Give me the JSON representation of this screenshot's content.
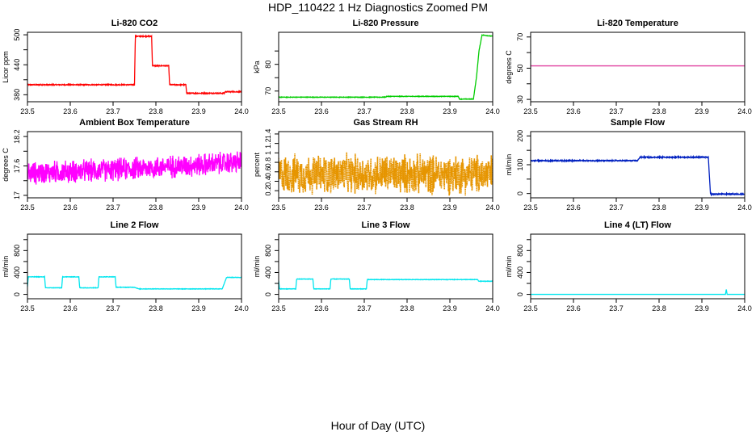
{
  "figure": {
    "title": "HDP_110422  1 Hz Diagnostics Zoomed PM",
    "xlabel": "Hour of Day (UTC)"
  },
  "chart_data": [
    {
      "type": "line",
      "title": "Li-820 CO2",
      "ylabel": "Licor ppm",
      "color": "#ff0000",
      "xlim": [
        23.5,
        24.0
      ],
      "ylim": [
        366,
        505
      ],
      "yticks": [
        380,
        440,
        500
      ],
      "ytick_minor": [
        410,
        470
      ],
      "xticks": [
        23.5,
        23.6,
        23.7,
        23.8,
        23.9,
        24.0
      ],
      "series": [
        {
          "noise": 0.9,
          "points": [
            [
              23.5,
              400
            ],
            [
              23.75,
              400
            ],
            [
              23.752,
              497
            ],
            [
              23.79,
              497
            ],
            [
              23.792,
              438
            ],
            [
              23.83,
              438
            ],
            [
              23.832,
              400
            ],
            [
              23.87,
              400
            ],
            [
              23.872,
              383
            ],
            [
              23.96,
              383
            ],
            [
              23.962,
              386
            ],
            [
              24.0,
              386
            ]
          ]
        }
      ]
    },
    {
      "type": "line",
      "title": "Li-820 Pressure",
      "ylabel": "kPa",
      "color": "#00cc00",
      "xlim": [
        23.5,
        24.0
      ],
      "ylim": [
        66,
        92
      ],
      "yticks": [
        70,
        80
      ],
      "ytick_minor": [
        75,
        85
      ],
      "xticks": [
        23.5,
        23.6,
        23.7,
        23.8,
        23.9,
        24.0
      ],
      "series": [
        {
          "noise": 0.1,
          "points": [
            [
              23.5,
              67.7
            ],
            [
              23.75,
              67.7
            ],
            [
              23.752,
              68.0
            ],
            [
              23.92,
              68.0
            ],
            [
              23.922,
              67.0
            ],
            [
              23.955,
              67.0
            ],
            [
              23.962,
              75
            ],
            [
              23.968,
              85
            ],
            [
              23.975,
              91
            ],
            [
              24.0,
              90.5
            ]
          ]
        }
      ]
    },
    {
      "type": "line",
      "title": "Li-820 Temperature",
      "ylabel": "degrees C",
      "color": "#e040a0",
      "xlim": [
        23.5,
        24.0
      ],
      "ylim": [
        28.5,
        73
      ],
      "yticks": [
        30,
        50,
        70
      ],
      "ytick_minor": [
        40,
        60
      ],
      "xticks": [
        23.5,
        23.6,
        23.7,
        23.8,
        23.9,
        24.0
      ],
      "series": [
        {
          "noise": 0,
          "points": [
            [
              23.5,
              51.5
            ],
            [
              24.0,
              51.5
            ]
          ]
        }
      ]
    },
    {
      "type": "line",
      "title": "Ambient Box Temperature",
      "ylabel": "degrees C",
      "color": "#ff00ff",
      "xlim": [
        23.5,
        24.0
      ],
      "ylim": [
        16.95,
        18.3
      ],
      "yticks": [
        17.0,
        17.6,
        18.2
      ],
      "ytick_minor": [
        17.3,
        17.9
      ],
      "xticks": [
        23.5,
        23.6,
        23.7,
        23.8,
        23.9,
        24.0
      ],
      "series": [
        {
          "noise": 0.18,
          "noise_type": "spiky",
          "points": [
            [
              23.5,
              17.45
            ],
            [
              23.7,
              17.52
            ],
            [
              23.9,
              17.62
            ],
            [
              24.0,
              17.68
            ]
          ]
        }
      ]
    },
    {
      "type": "line",
      "title": "Gas Stream RH",
      "ylabel": "percent",
      "color": "#e69500",
      "marker": "dot",
      "xlim": [
        23.5,
        24.0
      ],
      "ylim": [
        0.05,
        1.45
      ],
      "yticks": [
        0.2,
        0.4,
        0.6,
        0.8,
        1.0,
        1.2,
        1.4
      ],
      "ytick_minor": [],
      "xticks": [
        23.5,
        23.6,
        23.7,
        23.8,
        23.9,
        24.0
      ],
      "series": [
        {
          "noise": 0.32,
          "noise_type": "spiky",
          "points": [
            [
              23.5,
              0.55
            ],
            [
              24.0,
              0.55
            ]
          ]
        }
      ]
    },
    {
      "type": "line",
      "title": "Sample Flow",
      "ylabel": "ml/min",
      "color": "#0020c0",
      "xlim": [
        23.5,
        24.0
      ],
      "ylim": [
        -15,
        215
      ],
      "yticks": [
        0,
        100,
        200
      ],
      "ytick_minor": [
        50,
        150
      ],
      "xticks": [
        23.5,
        23.6,
        23.7,
        23.8,
        23.9,
        24.0
      ],
      "series": [
        {
          "noise": 1.8,
          "points": [
            [
              23.5,
              114
            ],
            [
              23.75,
              114
            ],
            [
              23.755,
              126
            ],
            [
              23.915,
              126
            ],
            [
              23.92,
              -2
            ],
            [
              24.0,
              -2
            ]
          ]
        }
      ]
    },
    {
      "type": "line",
      "title": "Line 2 Flow",
      "ylabel": "ml/min",
      "color": "#00e5ee",
      "xlim": [
        23.5,
        24.0
      ],
      "ylim": [
        -80,
        1100
      ],
      "yticks": [
        0,
        400,
        800
      ],
      "ytick_minor": [
        200,
        600,
        1000
      ],
      "xticks": [
        23.5,
        23.6,
        23.7,
        23.8,
        23.9,
        24.0
      ],
      "series": [
        {
          "noise": 4,
          "points": [
            [
              23.5,
              140
            ],
            [
              23.502,
              320
            ],
            [
              23.54,
              320
            ],
            [
              23.542,
              120
            ],
            [
              23.58,
              120
            ],
            [
              23.582,
              320
            ],
            [
              23.62,
              320
            ],
            [
              23.622,
              120
            ],
            [
              23.665,
              120
            ],
            [
              23.667,
              320
            ],
            [
              23.705,
              320
            ],
            [
              23.707,
              130
            ],
            [
              23.75,
              130
            ],
            [
              23.76,
              100
            ],
            [
              23.955,
              100
            ],
            [
              23.965,
              310
            ],
            [
              24.0,
              310
            ]
          ]
        }
      ]
    },
    {
      "type": "line",
      "title": "Line 3 Flow",
      "ylabel": "ml/min",
      "color": "#00e5ee",
      "xlim": [
        23.5,
        24.0
      ],
      "ylim": [
        -80,
        1100
      ],
      "yticks": [
        0,
        400,
        800
      ],
      "ytick_minor": [
        200,
        600,
        1000
      ],
      "xticks": [
        23.5,
        23.6,
        23.7,
        23.8,
        23.9,
        24.0
      ],
      "series": [
        {
          "noise": 4,
          "points": [
            [
              23.5,
              250
            ],
            [
              23.502,
              100
            ],
            [
              23.54,
              100
            ],
            [
              23.542,
              280
            ],
            [
              23.58,
              280
            ],
            [
              23.582,
              100
            ],
            [
              23.62,
              100
            ],
            [
              23.622,
              280
            ],
            [
              23.665,
              280
            ],
            [
              23.667,
              100
            ],
            [
              23.705,
              100
            ],
            [
              23.707,
              270
            ],
            [
              23.965,
              270
            ],
            [
              23.967,
              240
            ],
            [
              24.0,
              240
            ]
          ]
        }
      ]
    },
    {
      "type": "line",
      "title": "Line 4 (LT) Flow",
      "ylabel": "ml/min",
      "color": "#00e5ee",
      "xlim": [
        23.5,
        24.0
      ],
      "ylim": [
        -80,
        1100
      ],
      "yticks": [
        0,
        400,
        800
      ],
      "ytick_minor": [
        200,
        600,
        1000
      ],
      "xticks": [
        23.5,
        23.6,
        23.7,
        23.8,
        23.9,
        24.0
      ],
      "series": [
        {
          "noise": 0,
          "points": [
            [
              23.5,
              0
            ],
            [
              23.955,
              0
            ],
            [
              23.957,
              90
            ],
            [
              23.959,
              0
            ],
            [
              24.0,
              0
            ]
          ]
        }
      ]
    }
  ]
}
